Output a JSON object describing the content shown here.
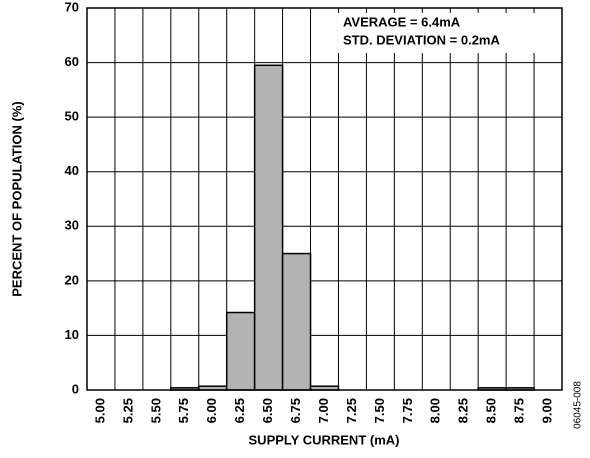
{
  "chart_data": {
    "type": "bar",
    "x_label": "SUPPLY CURRENT (mA)",
    "y_label": "PERCENT OF POPULATION (%)",
    "annotations": [
      "AVERAGE = 6.4mA",
      "STD. DEVIATION = 0.2mA"
    ],
    "side_label": "06045-008",
    "categories": [
      "5.00",
      "5.25",
      "5.50",
      "5.75",
      "6.00",
      "6.25",
      "6.50",
      "6.75",
      "7.00",
      "7.25",
      "7.50",
      "7.75",
      "8.00",
      "8.25",
      "8.50",
      "8.75",
      "9.00"
    ],
    "values": [
      0,
      0,
      0,
      0.4,
      0.7,
      14.2,
      59.5,
      25,
      0.7,
      0,
      0,
      0,
      0,
      0,
      0.4,
      0.4,
      0
    ],
    "color": "#b3b3b3",
    "ylim": [
      0,
      70
    ],
    "yticks": [
      0,
      10,
      20,
      30,
      40,
      50,
      60,
      70
    ],
    "grid": true
  }
}
